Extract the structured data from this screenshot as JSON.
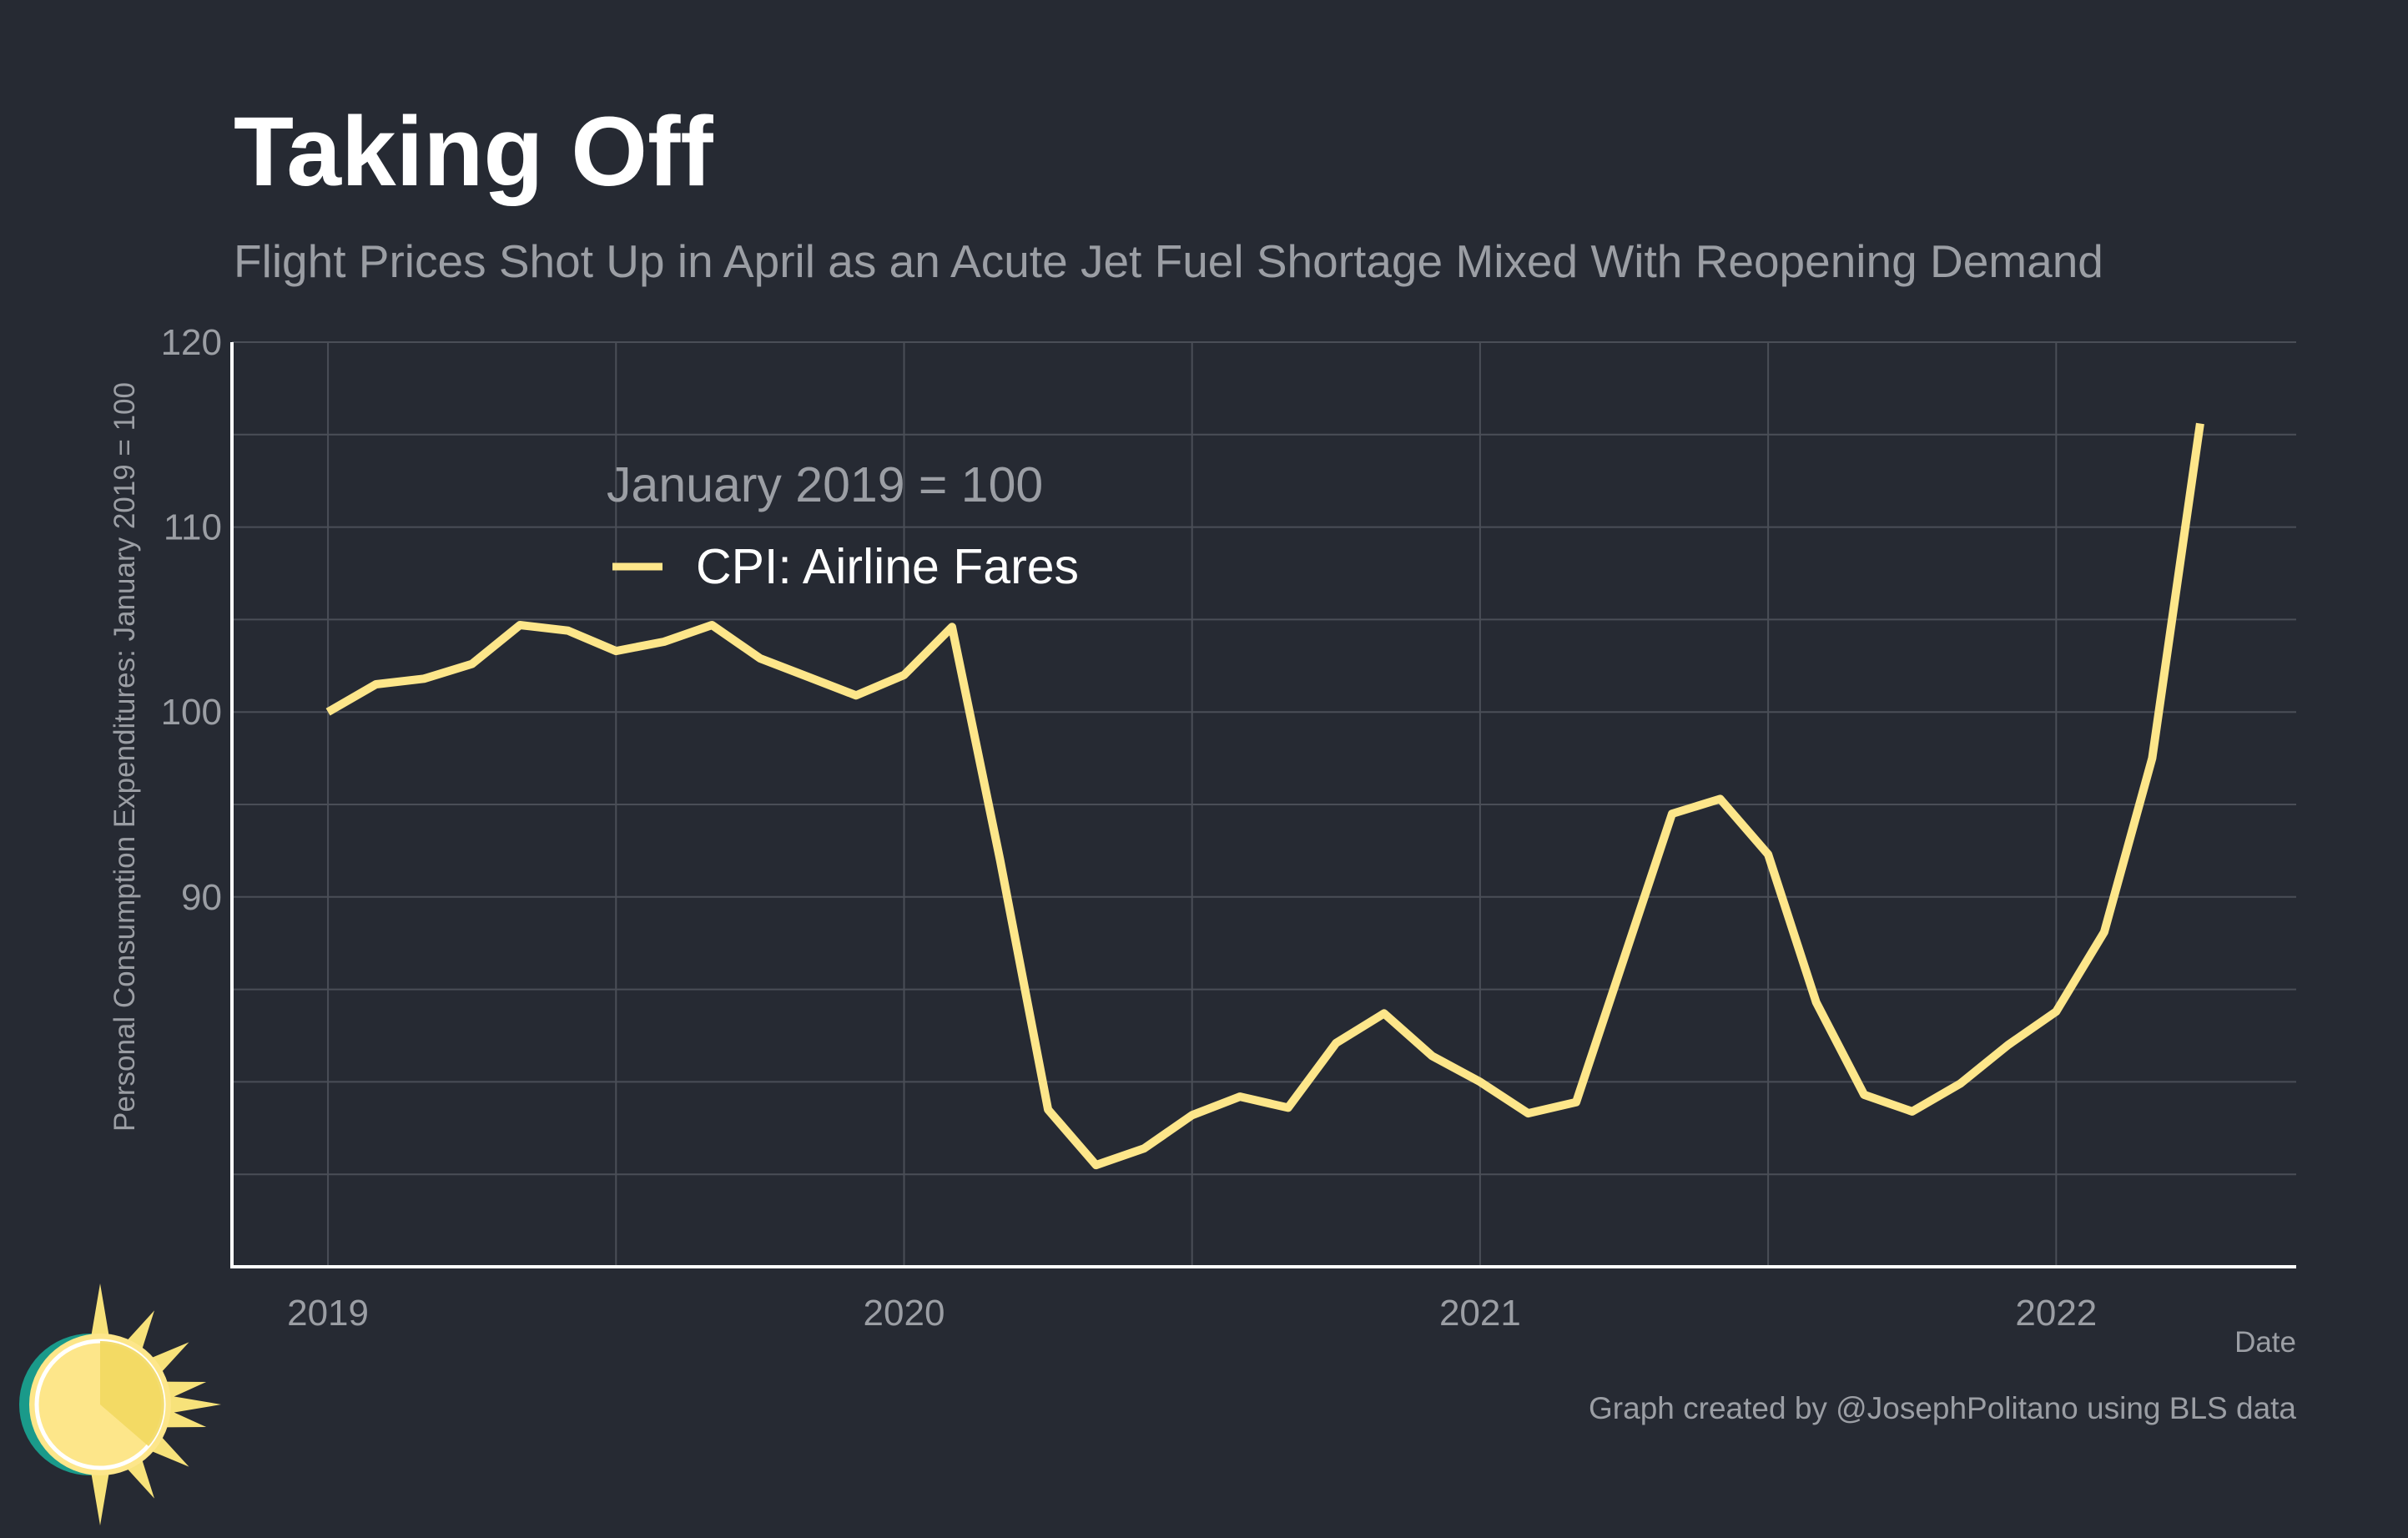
{
  "title": "Taking Off",
  "subtitle": "Flight Prices Shot Up in April as an Acute Jet Fuel Shortage Mixed With Reopening Demand",
  "caption": "Graph created by @JosephPolitano using BLS data",
  "colors": {
    "background": "#262a33",
    "line": "#fde68a",
    "grid": "#4a4e57",
    "axis": "#ffffff",
    "muted_text": "#9b9ea4",
    "logo_teal": "#1a9a8a",
    "logo_sun": "#fde68a",
    "logo_rays": "#f7e27a"
  },
  "logo": {
    "icon": "sun-logo-icon"
  },
  "chart_data": {
    "type": "line",
    "title": "Taking Off",
    "subtitle": "Flight Prices Shot Up in April as an Acute Jet Fuel Shortage Mixed With Reopening Demand",
    "xlabel": "Date",
    "ylabel": "Personal Consumption Expenditures: January 2019 = 100",
    "xlim": [
      "2018-11",
      "2022-06"
    ],
    "ylim": [
      70,
      120
    ],
    "x_ticks": [
      {
        "value": "2019-01",
        "label": "2019"
      },
      {
        "value": "2020-01",
        "label": "2020"
      },
      {
        "value": "2021-01",
        "label": "2021"
      },
      {
        "value": "2022-01",
        "label": "2022"
      }
    ],
    "y_ticks": [
      {
        "value": 90,
        "label": "90"
      },
      {
        "value": 100,
        "label": "100"
      },
      {
        "value": 110,
        "label": "110"
      },
      {
        "value": 120,
        "label": "120"
      }
    ],
    "y_minor_gridlines": [
      75,
      80,
      85,
      95,
      105,
      115
    ],
    "grid": true,
    "legend": {
      "title": "January 2019 = 100",
      "placement": "top-left"
    },
    "series": [
      {
        "name": "CPI: Airline Fares",
        "x": [
          "2019-01",
          "2019-02",
          "2019-03",
          "2019-04",
          "2019-05",
          "2019-06",
          "2019-07",
          "2019-08",
          "2019-09",
          "2019-10",
          "2019-11",
          "2019-12",
          "2020-01",
          "2020-02",
          "2020-03",
          "2020-04",
          "2020-05",
          "2020-06",
          "2020-07",
          "2020-08",
          "2020-09",
          "2020-10",
          "2020-11",
          "2020-12",
          "2021-01",
          "2021-02",
          "2021-03",
          "2021-04",
          "2021-05",
          "2021-06",
          "2021-07",
          "2021-08",
          "2021-09",
          "2021-10",
          "2021-11",
          "2021-12",
          "2022-01",
          "2022-02",
          "2022-03",
          "2022-04"
        ],
        "values": [
          100.0,
          101.5,
          101.8,
          102.6,
          104.7,
          104.4,
          103.3,
          103.8,
          104.7,
          102.9,
          101.9,
          100.9,
          102.0,
          104.6,
          92.0,
          78.5,
          75.5,
          76.4,
          78.2,
          79.2,
          78.6,
          82.1,
          83.7,
          81.4,
          80.0,
          78.3,
          78.9,
          86.7,
          94.5,
          95.3,
          92.3,
          84.3,
          79.3,
          78.4,
          79.9,
          82.0,
          83.8,
          88.1,
          97.5,
          115.6
        ]
      }
    ]
  }
}
